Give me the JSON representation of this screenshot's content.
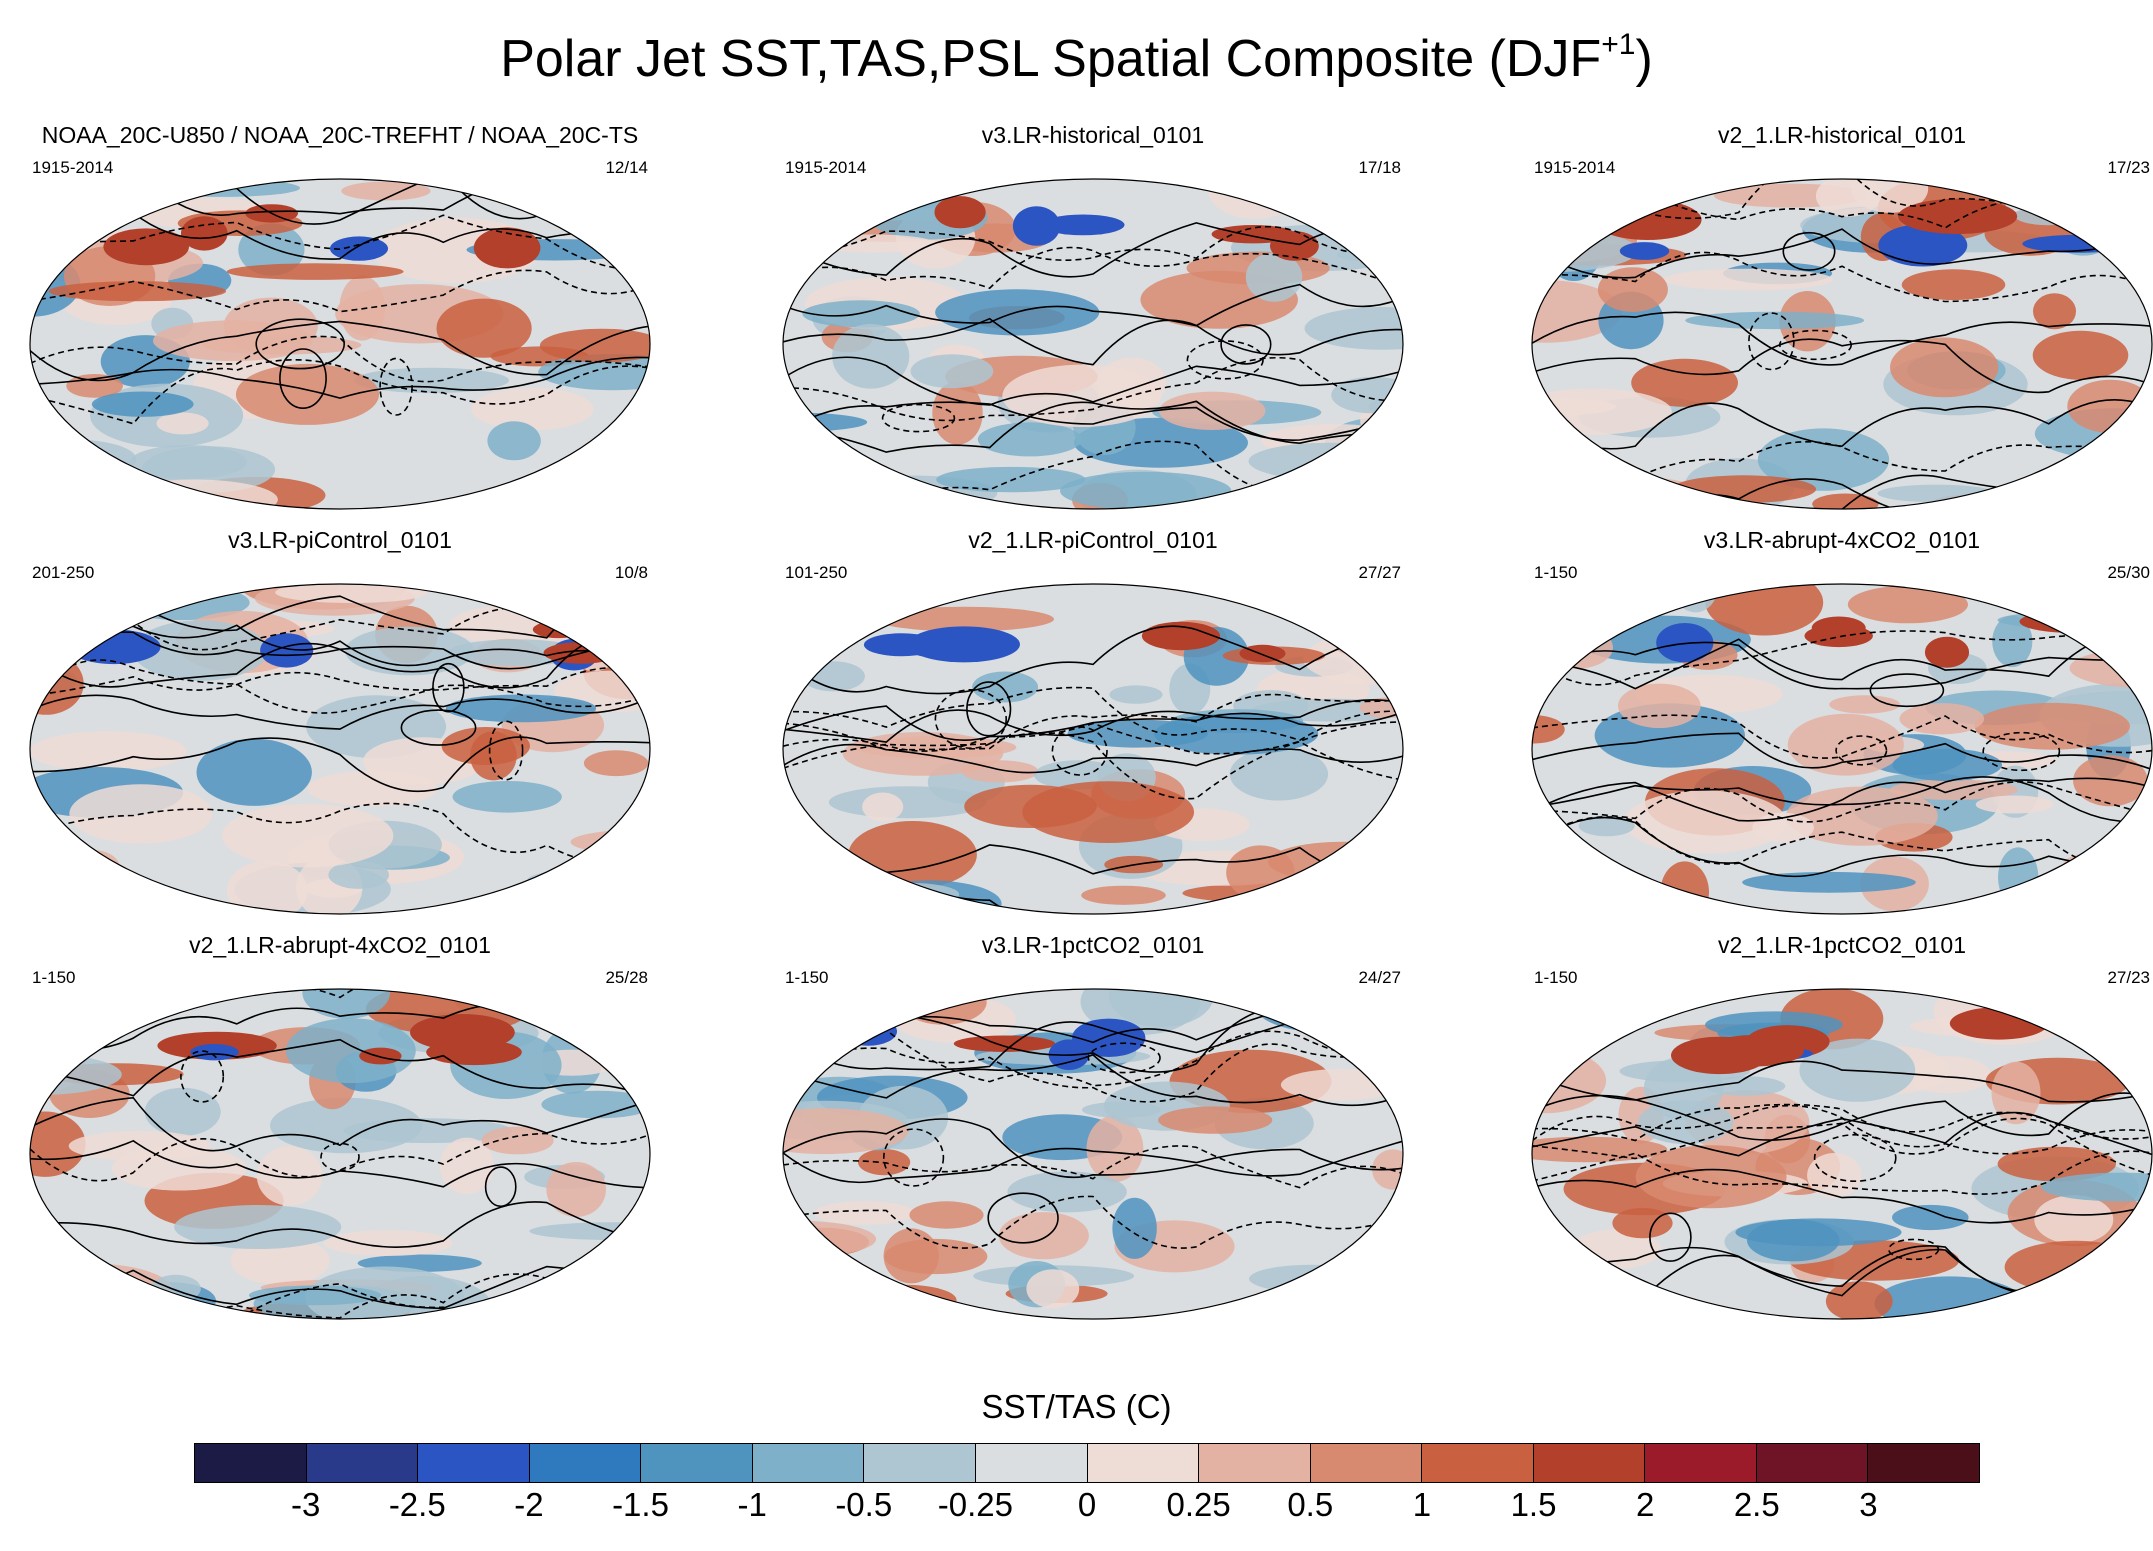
{
  "title": {
    "main": "Polar Jet SST,TAS,PSL Spatial Composite (DJF",
    "superscript": "+1",
    "close": ")"
  },
  "panels": [
    {
      "title": "NOAA_20C-U850 / NOAA_20C-TREFHT / NOAA_20C-TS",
      "period": "1915-2014",
      "ratio": "12/14"
    },
    {
      "title": "v3.LR-historical_0101",
      "period": "1915-2014",
      "ratio": "17/18"
    },
    {
      "title": "v2_1.LR-historical_0101",
      "period": "1915-2014",
      "ratio": "17/23"
    },
    {
      "title": "v3.LR-piControl_0101",
      "period": "201-250",
      "ratio": "10/8"
    },
    {
      "title": "v2_1.LR-piControl_0101",
      "period": "101-250",
      "ratio": "27/27"
    },
    {
      "title": "v3.LR-abrupt-4xCO2_0101",
      "period": "1-150",
      "ratio": "25/30"
    },
    {
      "title": "v2_1.LR-abrupt-4xCO2_0101",
      "period": "1-150",
      "ratio": "25/28"
    },
    {
      "title": "v3.LR-1pctCO2_0101",
      "period": "1-150",
      "ratio": "24/27"
    },
    {
      "title": "v2_1.LR-1pctCO2_0101",
      "period": "1-150",
      "ratio": "27/23"
    }
  ],
  "colorbar": {
    "title": "SST/TAS (C)",
    "colors": [
      "#1b1b45",
      "#2a3a8a",
      "#2c55c4",
      "#2f7abf",
      "#4f93bf",
      "#7eb0c9",
      "#adc6d1",
      "#dadee0",
      "#eedcd6",
      "#e4b2a2",
      "#d88a70",
      "#c9603f",
      "#b3402a",
      "#9b1b2b",
      "#6e1426",
      "#4a0f18"
    ],
    "tick_labels": [
      "-3",
      "-2.5",
      "-2",
      "-1.5",
      "-1",
      "-0.5",
      "-0.25",
      "0",
      "0.25",
      "0.5",
      "1",
      "1.5",
      "2",
      "2.5",
      "3"
    ]
  }
}
